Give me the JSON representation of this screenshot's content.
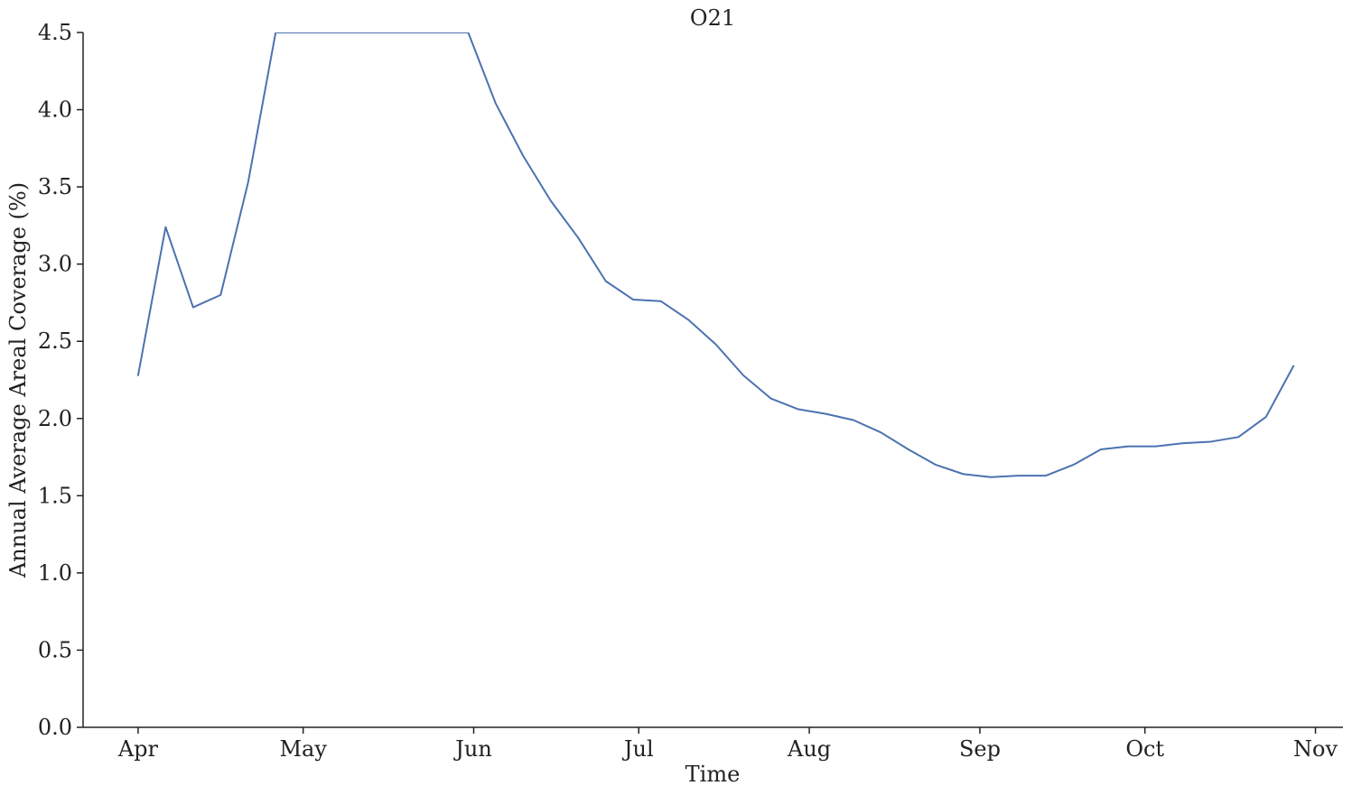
{
  "chart_data": {
    "type": "line",
    "title": "O21",
    "xlabel": "Time",
    "ylabel": "Annual Average Areal Coverage (%)",
    "ylim": [
      0,
      4.5
    ],
    "xlim": [
      "2021-03-22",
      "2021-11-06"
    ],
    "grid": false,
    "legend": "none",
    "x_ticks": [
      {
        "date": "2021-04-01",
        "label": "Apr"
      },
      {
        "date": "2021-05-01",
        "label": "May"
      },
      {
        "date": "2021-06-01",
        "label": "Jun"
      },
      {
        "date": "2021-07-01",
        "label": "Jul"
      },
      {
        "date": "2021-08-01",
        "label": "Aug"
      },
      {
        "date": "2021-09-01",
        "label": "Sep"
      },
      {
        "date": "2021-10-01",
        "label": "Oct"
      },
      {
        "date": "2021-11-01",
        "label": "Nov"
      }
    ],
    "y_ticks": [
      "0.0",
      "0.5",
      "1.0",
      "1.5",
      "2.0",
      "2.5",
      "3.0",
      "3.5",
      "4.0",
      "4.5"
    ],
    "series": [
      {
        "color": "#4c72b0",
        "x": [
          "2021-04-01",
          "2021-04-06",
          "2021-04-11",
          "2021-04-16",
          "2021-04-21",
          "2021-04-26",
          "2021-05-31",
          "2021-06-05",
          "2021-06-10",
          "2021-06-15",
          "2021-06-20",
          "2021-06-25",
          "2021-06-30",
          "2021-07-05",
          "2021-07-10",
          "2021-07-15",
          "2021-07-20",
          "2021-07-25",
          "2021-07-30",
          "2021-08-04",
          "2021-08-09",
          "2021-08-14",
          "2021-08-19",
          "2021-08-24",
          "2021-08-29",
          "2021-09-03",
          "2021-09-08",
          "2021-09-13",
          "2021-09-18",
          "2021-09-23",
          "2021-09-28",
          "2021-10-03",
          "2021-10-08",
          "2021-10-13",
          "2021-10-18",
          "2021-10-23",
          "2021-10-28"
        ],
        "values": [
          2.28,
          3.24,
          2.72,
          2.8,
          3.53,
          4.5,
          4.5,
          4.04,
          3.7,
          3.41,
          3.17,
          2.89,
          2.77,
          2.76,
          2.64,
          2.48,
          2.28,
          2.13,
          2.06,
          2.03,
          1.99,
          1.91,
          1.8,
          1.7,
          1.64,
          1.62,
          1.63,
          1.63,
          1.7,
          1.8,
          1.82,
          1.82,
          1.84,
          1.85,
          1.88,
          2.01,
          2.34
        ]
      }
    ]
  }
}
